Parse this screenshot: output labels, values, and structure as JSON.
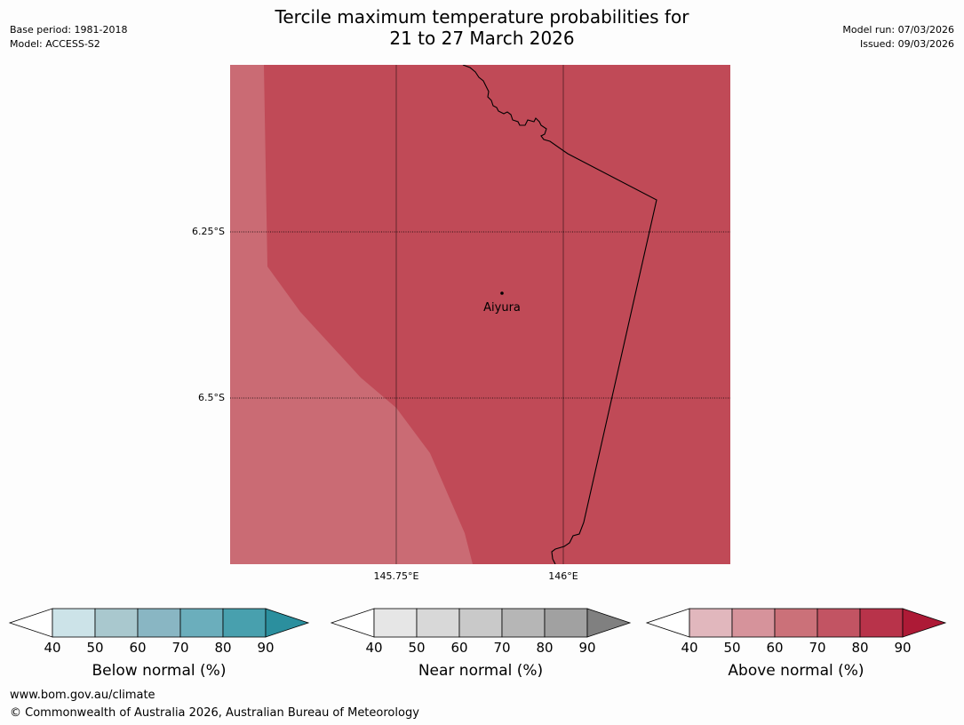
{
  "header": {
    "title_line1": "Tercile maximum temperature probabilities for",
    "title_line2": "21 to 27 March 2026",
    "base_period": "Base period: 1981-2018",
    "model": "Model: ACCESS-S2",
    "model_run": "Model run: 07/03/2026",
    "issued": "Issued: 09/03/2026"
  },
  "map": {
    "place_label": "Aiyura",
    "lat_labels": [
      "6.25°S",
      "6.5°S"
    ],
    "lon_labels": [
      "145.75°E",
      "146°E"
    ],
    "fill_70_80": "#c04a57",
    "fill_60_70": "#ca6b74",
    "border_color": "#000000"
  },
  "colorbars": [
    {
      "name": "below",
      "title": "Below normal (%)",
      "ticks": [
        "40",
        "50",
        "60",
        "70",
        "80",
        "90"
      ],
      "colors": [
        "#cce3e8",
        "#a9c8ce",
        "#89b6c3",
        "#6baebc",
        "#48a0ae"
      ],
      "extend_color": "#2b8f9e"
    },
    {
      "name": "near",
      "title": "Near normal (%)",
      "ticks": [
        "40",
        "50",
        "60",
        "70",
        "80",
        "90"
      ],
      "colors": [
        "#e6e6e6",
        "#d8d8d8",
        "#c9c9c9",
        "#b6b6b6",
        "#a1a1a1"
      ],
      "extend_color": "#808080"
    },
    {
      "name": "above",
      "title": "Above normal (%)",
      "ticks": [
        "40",
        "50",
        "60",
        "70",
        "80",
        "90"
      ],
      "colors": [
        "#e1b7bd",
        "#d6939b",
        "#cb7179",
        "#c25463",
        "#b8334a"
      ],
      "extend_color": "#ad1a36"
    }
  ],
  "footer": {
    "url": "www.bom.gov.au/climate",
    "copyright": "© Commonwealth of Australia 2026, Australian Bureau of Meteorology"
  }
}
